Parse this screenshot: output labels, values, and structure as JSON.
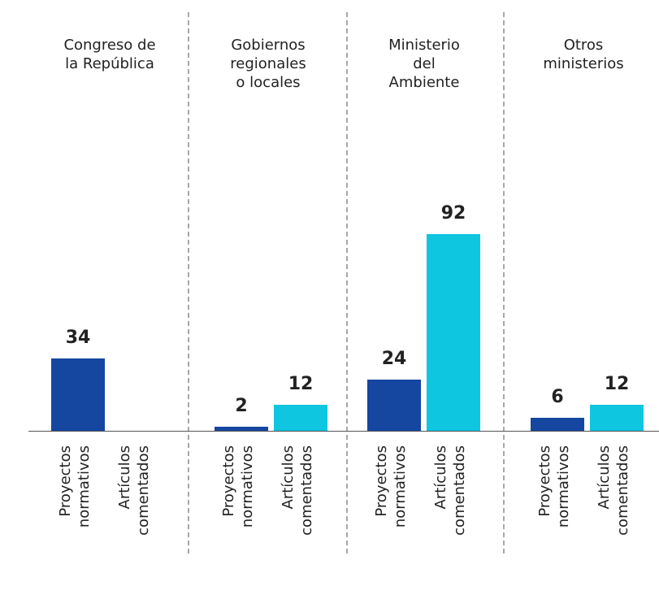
{
  "chart_data": {
    "type": "bar",
    "categories": [
      "Congreso de\nla República",
      "Gobiernos\nregionales\no locales",
      "Ministerio\ndel\nAmbiente",
      "Otros\nministerios"
    ],
    "series": [
      {
        "name": "Proyectos\nnormativos",
        "color": "#1546a0",
        "values": [
          34,
          2,
          24,
          6
        ]
      },
      {
        "name": "Artículos\ncomentados",
        "color": "#0ec6e0",
        "values": [
          null,
          12,
          92,
          12
        ]
      }
    ]
  }
}
